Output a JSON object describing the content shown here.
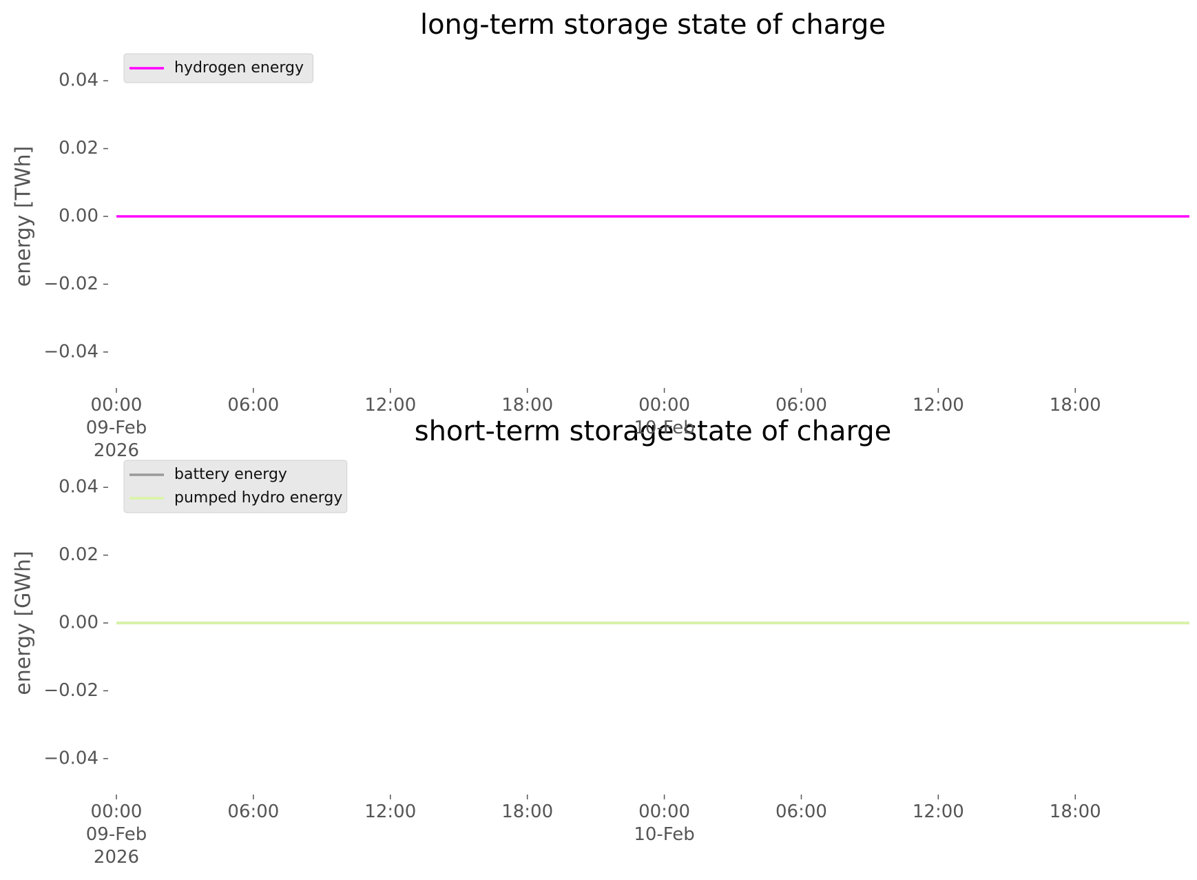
{
  "chart_data": [
    {
      "type": "line",
      "title": "long-term storage state of charge",
      "y_label": "energy [TWh]",
      "x": [
        "2026-02-09 00:00",
        "2026-02-09 01:00",
        "2026-02-09 02:00",
        "2026-02-09 03:00",
        "2026-02-09 04:00",
        "2026-02-09 05:00",
        "2026-02-09 06:00",
        "2026-02-09 07:00",
        "2026-02-09 08:00",
        "2026-02-09 09:00",
        "2026-02-09 10:00",
        "2026-02-09 11:00",
        "2026-02-09 12:00",
        "2026-02-09 13:00",
        "2026-02-09 14:00",
        "2026-02-09 15:00",
        "2026-02-09 16:00",
        "2026-02-09 17:00",
        "2026-02-09 18:00",
        "2026-02-09 19:00",
        "2026-02-09 20:00",
        "2026-02-09 21:00",
        "2026-02-09 22:00",
        "2026-02-09 23:00",
        "2026-02-10 00:00",
        "2026-02-10 01:00",
        "2026-02-10 02:00",
        "2026-02-10 03:00",
        "2026-02-10 04:00",
        "2026-02-10 05:00",
        "2026-02-10 06:00",
        "2026-02-10 07:00",
        "2026-02-10 08:00",
        "2026-02-10 09:00",
        "2026-02-10 10:00",
        "2026-02-10 11:00",
        "2026-02-10 12:00",
        "2026-02-10 13:00",
        "2026-02-10 14:00",
        "2026-02-10 15:00",
        "2026-02-10 16:00",
        "2026-02-10 17:00",
        "2026-02-10 18:00",
        "2026-02-10 19:00",
        "2026-02-10 20:00",
        "2026-02-10 21:00",
        "2026-02-10 22:00",
        "2026-02-10 23:00"
      ],
      "series": [
        {
          "name": "hydrogen energy",
          "color": "#ff00ff",
          "values": [
            0,
            0,
            0,
            0,
            0,
            0,
            0,
            0,
            0,
            0,
            0,
            0,
            0,
            0,
            0,
            0,
            0,
            0,
            0,
            0,
            0,
            0,
            0,
            0,
            0,
            0,
            0,
            0,
            0,
            0,
            0,
            0,
            0,
            0,
            0,
            0,
            0,
            0,
            0,
            0,
            0,
            0,
            0,
            0,
            0,
            0,
            0,
            0
          ]
        }
      ],
      "xlim": [
        "2026-02-09 00:00",
        "2026-02-10 23:00"
      ],
      "xticks": [
        {
          "value": "2026-02-09 00:00",
          "label": "00:00\n09-Feb\n2026"
        },
        {
          "value": "2026-02-09 06:00",
          "label": "06:00"
        },
        {
          "value": "2026-02-09 12:00",
          "label": "12:00"
        },
        {
          "value": "2026-02-09 18:00",
          "label": "18:00"
        },
        {
          "value": "2026-02-10 00:00",
          "label": "00:00\n10-Feb"
        },
        {
          "value": "2026-02-10 06:00",
          "label": "06:00"
        },
        {
          "value": "2026-02-10 12:00",
          "label": "12:00"
        },
        {
          "value": "2026-02-10 18:00",
          "label": "18:00"
        }
      ],
      "ylim": [
        -0.05,
        0.05
      ],
      "yticks": [
        {
          "value": -0.04,
          "label": "−0.04"
        },
        {
          "value": -0.02,
          "label": "−0.02"
        },
        {
          "value": 0,
          "label": "0.00"
        },
        {
          "value": 0.02,
          "label": "0.02"
        },
        {
          "value": 0.04,
          "label": "0.04"
        }
      ],
      "legend": "upper left"
    },
    {
      "type": "line",
      "title": "short-term storage state of charge",
      "y_label": "energy [GWh]",
      "x": [
        "2026-02-09 00:00",
        "2026-02-09 01:00",
        "2026-02-09 02:00",
        "2026-02-09 03:00",
        "2026-02-09 04:00",
        "2026-02-09 05:00",
        "2026-02-09 06:00",
        "2026-02-09 07:00",
        "2026-02-09 08:00",
        "2026-02-09 09:00",
        "2026-02-09 10:00",
        "2026-02-09 11:00",
        "2026-02-09 12:00",
        "2026-02-09 13:00",
        "2026-02-09 14:00",
        "2026-02-09 15:00",
        "2026-02-09 16:00",
        "2026-02-09 17:00",
        "2026-02-09 18:00",
        "2026-02-09 19:00",
        "2026-02-09 20:00",
        "2026-02-09 21:00",
        "2026-02-09 22:00",
        "2026-02-09 23:00",
        "2026-02-10 00:00",
        "2026-02-10 01:00",
        "2026-02-10 02:00",
        "2026-02-10 03:00",
        "2026-02-10 04:00",
        "2026-02-10 05:00",
        "2026-02-10 06:00",
        "2026-02-10 07:00",
        "2026-02-10 08:00",
        "2026-02-10 09:00",
        "2026-02-10 10:00",
        "2026-02-10 11:00",
        "2026-02-10 12:00",
        "2026-02-10 13:00",
        "2026-02-10 14:00",
        "2026-02-10 15:00",
        "2026-02-10 16:00",
        "2026-02-10 17:00",
        "2026-02-10 18:00",
        "2026-02-10 19:00",
        "2026-02-10 20:00",
        "2026-02-10 21:00",
        "2026-02-10 22:00",
        "2026-02-10 23:00"
      ],
      "series": [
        {
          "name": "battery energy",
          "color": "#999999",
          "values": [
            0,
            0,
            0,
            0,
            0,
            0,
            0,
            0,
            0,
            0,
            0,
            0,
            0,
            0,
            0,
            0,
            0,
            0,
            0,
            0,
            0,
            0,
            0,
            0,
            0,
            0,
            0,
            0,
            0,
            0,
            0,
            0,
            0,
            0,
            0,
            0,
            0,
            0,
            0,
            0,
            0,
            0,
            0,
            0,
            0,
            0,
            0,
            0
          ]
        },
        {
          "name": "pumped hydro energy",
          "color": "#d9f5a5",
          "values": [
            0,
            0,
            0,
            0,
            0,
            0,
            0,
            0,
            0,
            0,
            0,
            0,
            0,
            0,
            0,
            0,
            0,
            0,
            0,
            0,
            0,
            0,
            0,
            0,
            0,
            0,
            0,
            0,
            0,
            0,
            0,
            0,
            0,
            0,
            0,
            0,
            0,
            0,
            0,
            0,
            0,
            0,
            0,
            0,
            0,
            0,
            0,
            0
          ]
        }
      ],
      "xlim": [
        "2026-02-09 00:00",
        "2026-02-10 23:00"
      ],
      "xticks": [
        {
          "value": "2026-02-09 00:00",
          "label": "00:00\n09-Feb\n2026"
        },
        {
          "value": "2026-02-09 06:00",
          "label": "06:00"
        },
        {
          "value": "2026-02-09 12:00",
          "label": "12:00"
        },
        {
          "value": "2026-02-09 18:00",
          "label": "18:00"
        },
        {
          "value": "2026-02-10 00:00",
          "label": "00:00\n10-Feb"
        },
        {
          "value": "2026-02-10 06:00",
          "label": "06:00"
        },
        {
          "value": "2026-02-10 12:00",
          "label": "12:00"
        },
        {
          "value": "2026-02-10 18:00",
          "label": "18:00"
        }
      ],
      "ylim": [
        -0.05,
        0.05
      ],
      "yticks": [
        {
          "value": -0.04,
          "label": "−0.04"
        },
        {
          "value": -0.02,
          "label": "−0.02"
        },
        {
          "value": 0,
          "label": "0.00"
        },
        {
          "value": 0.02,
          "label": "0.02"
        },
        {
          "value": 0.04,
          "label": "0.04"
        }
      ],
      "legend": "upper left"
    }
  ]
}
